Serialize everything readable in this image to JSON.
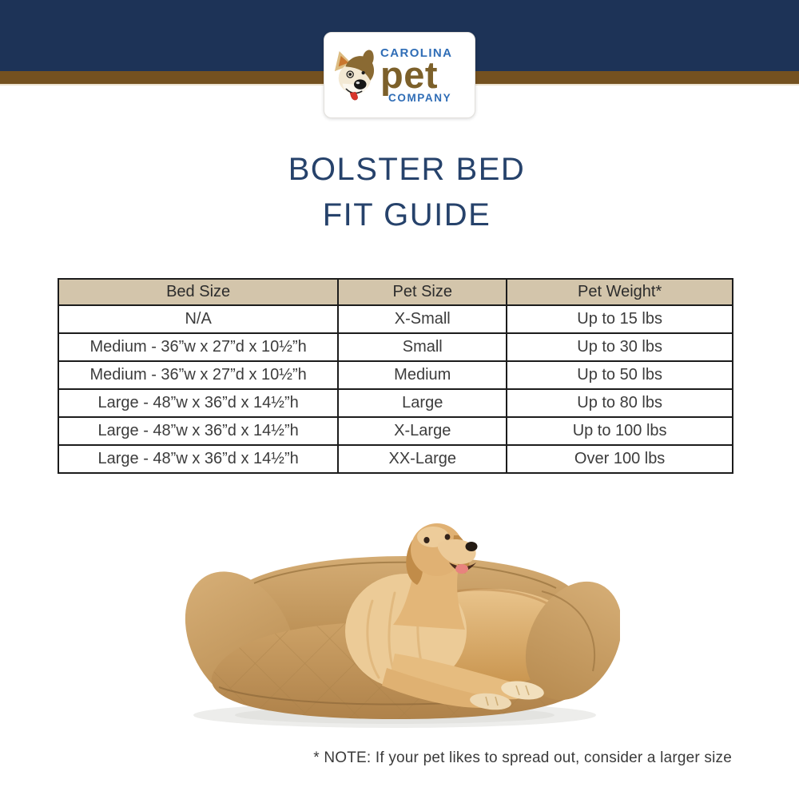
{
  "brand": {
    "name_top": "CAROLINA",
    "name_mid": "pet",
    "name_bottom": "COMPANY"
  },
  "title": {
    "line1": "BOLSTER BED",
    "line2": "FIT GUIDE"
  },
  "table": {
    "headers": [
      "Bed Size",
      "Pet Size",
      "Pet Weight*"
    ],
    "rows": [
      [
        "N/A",
        "X-Small",
        "Up to 15 lbs"
      ],
      [
        "Medium - 36”w x 27”d x 10½”h",
        "Small",
        "Up to 30 lbs"
      ],
      [
        "Medium - 36”w x 27”d x 10½”h",
        "Medium",
        "Up to 50 lbs"
      ],
      [
        "Large - 48”w x 36”d x 14½”h",
        "Large",
        "Up to 80 lbs"
      ],
      [
        "Large - 48”w x 36”d x 14½”h",
        "X-Large",
        "Up to 100 lbs"
      ],
      [
        "Large - 48”w x 36”d x 14½”h",
        "XX-Large",
        "Over 100 lbs"
      ]
    ]
  },
  "note": "* NOTE: If your pet likes to spread out, consider a larger size",
  "illustration": {
    "alt": "Golden retriever lying on a tan bolster dog bed"
  },
  "colors": {
    "navy_band": "#1d3357",
    "gold_stripe": "#745120",
    "table_header_tan": "#d3c5ab",
    "title_navy": "#26426b",
    "logo_blue": "#2f6db6",
    "logo_brown": "#7c602a",
    "bed_tan": "#c89b60",
    "dog_gold": "#ddb274"
  }
}
